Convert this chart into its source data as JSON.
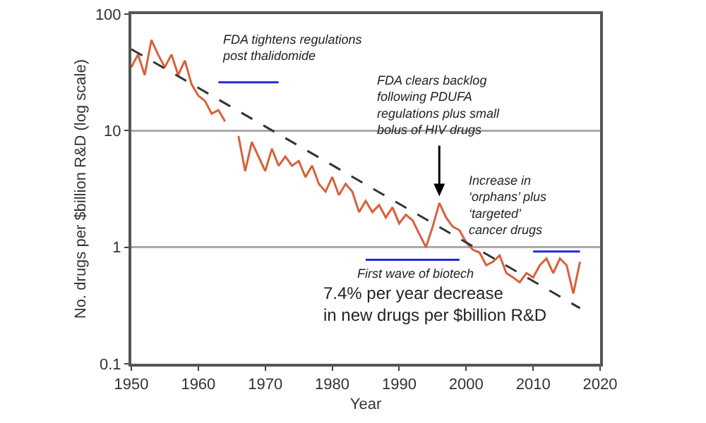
{
  "chart_data": {
    "type": "line",
    "xlabel": "Year",
    "ylabel": "No. drugs per $billion R&D (log scale)",
    "log": "y",
    "xlim": [
      1950,
      2020
    ],
    "xticks": [
      1950,
      1960,
      1970,
      1980,
      1990,
      2000,
      2010,
      2020
    ],
    "ylim": [
      0.1,
      100
    ],
    "yticks": [
      0.1,
      1,
      10,
      100
    ],
    "grid": "y",
    "marker": "none",
    "series": [
      {
        "color": "#d9603b",
        "line_style": "solid",
        "x": [
          1950,
          1951,
          1952,
          1953,
          1954,
          1955,
          1956,
          1957,
          1958,
          1959,
          1960,
          1961,
          1962,
          1963,
          1964,
          1965,
          1966,
          1967,
          1968,
          1969,
          1970,
          1971,
          1972,
          1973,
          1974,
          1975,
          1976,
          1977,
          1978,
          1979,
          1980,
          1981,
          1982,
          1983,
          1984,
          1985,
          1986,
          1987,
          1988,
          1989,
          1990,
          1991,
          1992,
          1993,
          1994,
          1995,
          1996,
          1997,
          1998,
          1999,
          2000,
          2001,
          2002,
          2003,
          2004,
          2005,
          2006,
          2007,
          2008,
          2009,
          2010,
          2011,
          2012,
          2013,
          2014,
          2015,
          2016,
          2017
        ],
        "values": [
          35,
          45,
          30,
          60,
          45,
          35,
          45,
          30,
          40,
          25,
          20,
          18,
          14,
          15,
          12,
          null,
          9,
          4.5,
          8,
          6,
          4.5,
          7,
          5,
          6,
          5,
          5.5,
          4,
          5,
          3.5,
          3,
          4,
          2.8,
          3.5,
          3,
          2,
          2.5,
          2,
          2.3,
          1.8,
          2.2,
          1.6,
          1.9,
          1.7,
          1.3,
          1,
          1.5,
          2.4,
          1.8,
          1.5,
          1.4,
          1.1,
          0.95,
          0.9,
          0.7,
          0.75,
          0.85,
          0.6,
          0.55,
          0.5,
          0.6,
          0.55,
          0.7,
          0.8,
          0.6,
          0.8,
          0.7,
          0.4,
          0.75
        ]
      },
      {
        "color": "#333333",
        "line_style": "dashed",
        "x": [
          1950,
          2017
        ],
        "values": [
          50,
          0.3
        ]
      },
      {
        "color": "#1f2bd6",
        "line_style": "solid",
        "x": [
          1963,
          1972
        ],
        "values": [
          26,
          26
        ]
      },
      {
        "color": "#1f2bd6",
        "line_style": "solid",
        "x": [
          1985,
          1999
        ],
        "values": [
          0.78,
          0.78
        ]
      },
      {
        "color": "#1f2bd6",
        "line_style": "solid",
        "x": [
          2010,
          2017
        ],
        "values": [
          0.92,
          0.92
        ]
      }
    ],
    "annotations": [
      {
        "text": "FDA tightens regulations\npost thalidomide",
        "x": 1963,
        "y": 26
      },
      "FDA clears backlog\nfollowing PDUFA\nregulations plus small\nbolus of HIV drugs",
      {
        "text": "Increase in\n‘orphans’ plus\n‘targeted’\ncancer drugs",
        "x": 2010,
        "y": 0.92
      },
      {
        "text": "First wave of biotech",
        "x": 1985,
        "y": 0.78
      },
      "7.4% per year decrease\nin new drugs per $billion R&D"
    ]
  }
}
